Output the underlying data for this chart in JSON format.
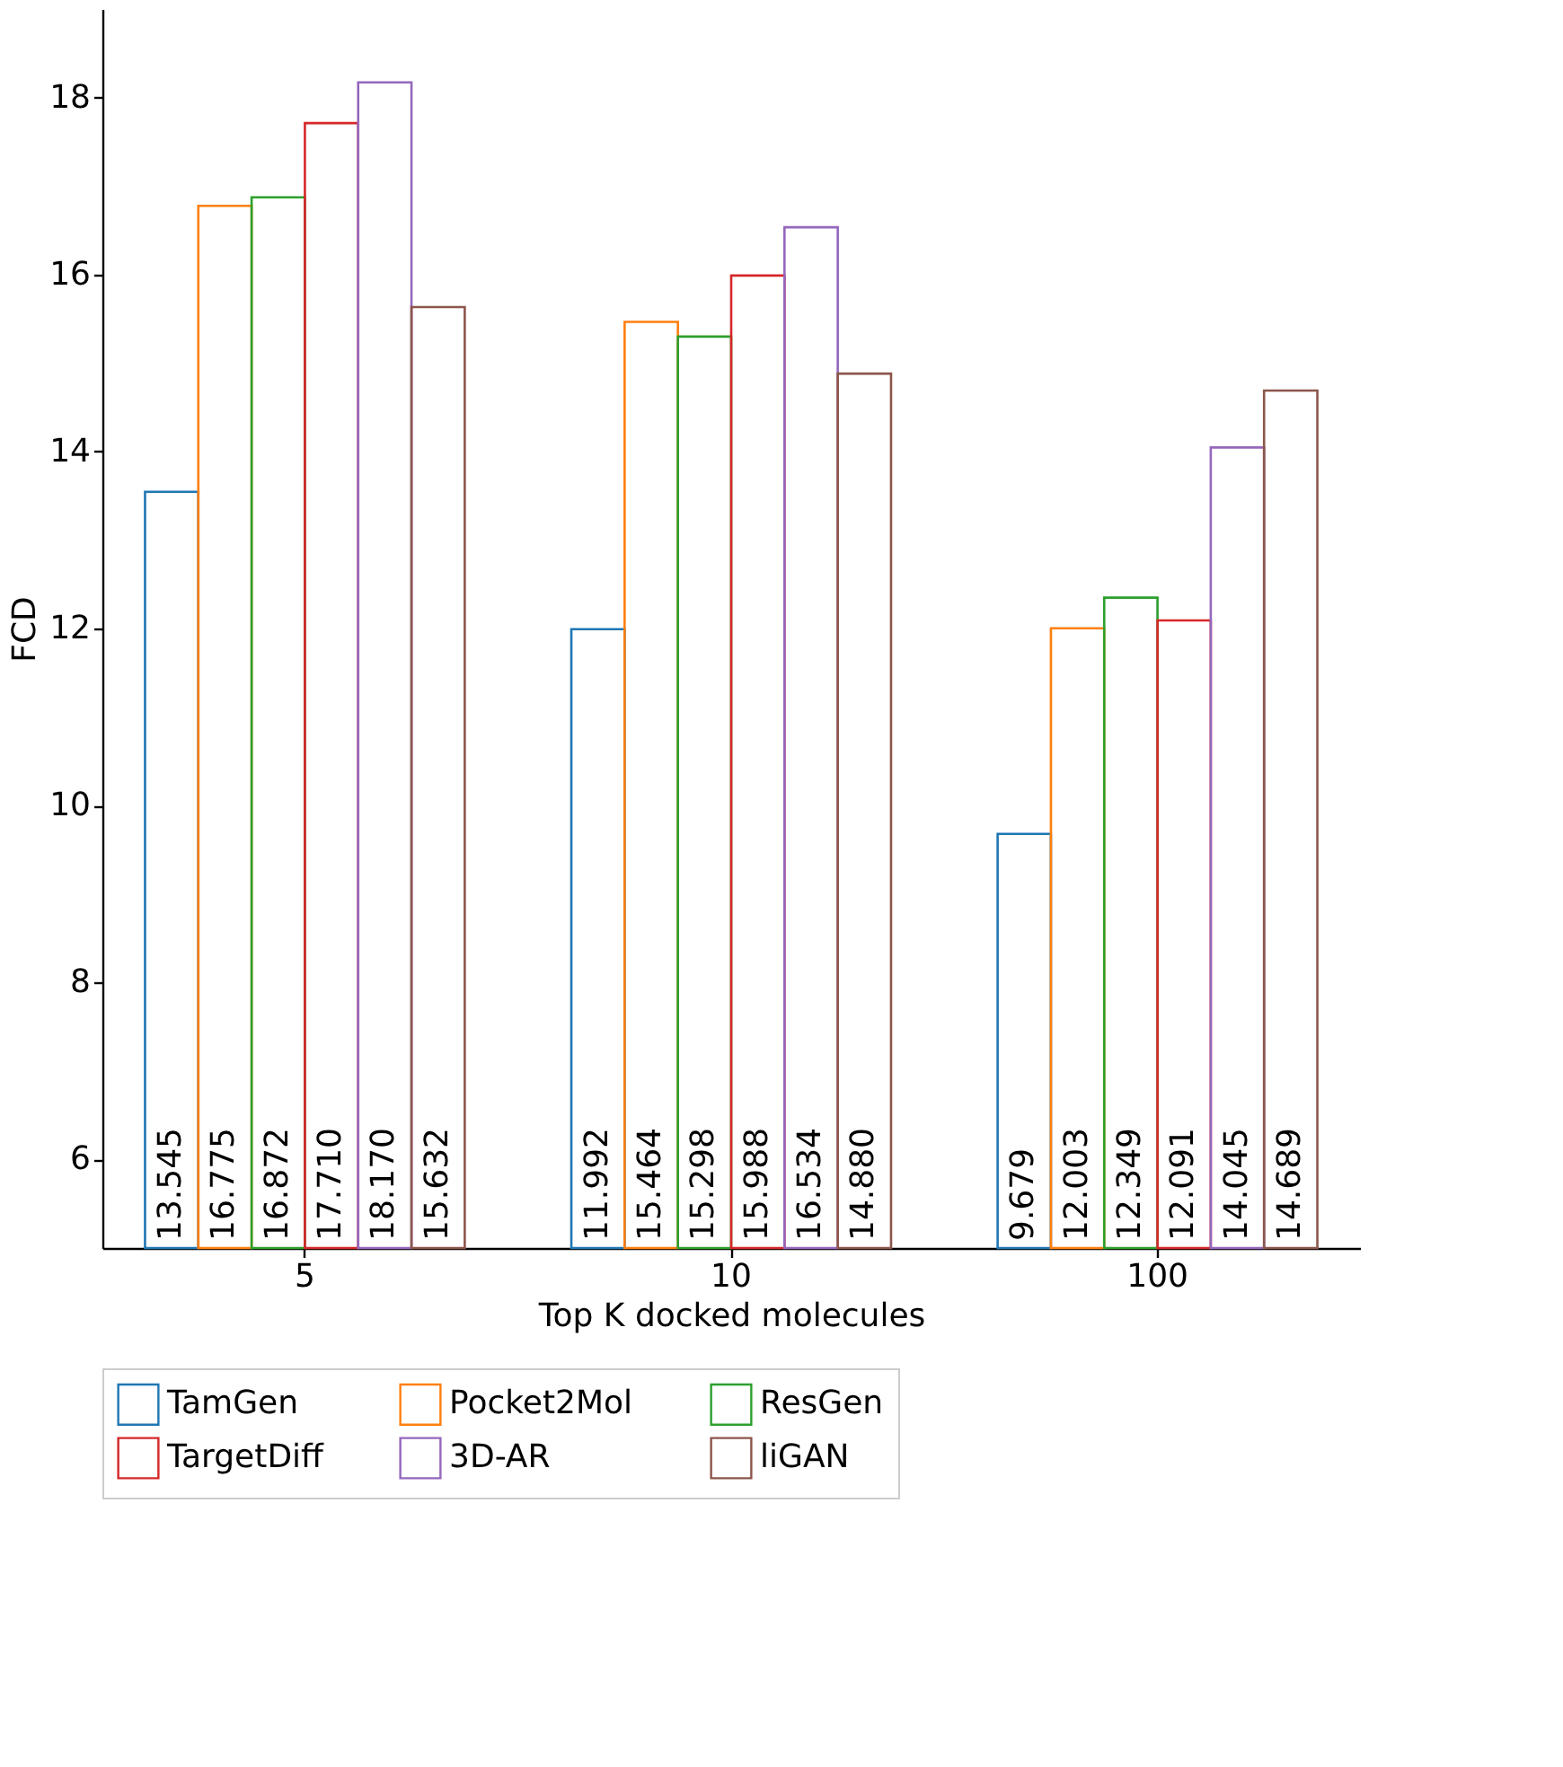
{
  "chart_data": {
    "type": "bar",
    "xlabel": "Top K docked molecules",
    "ylabel": "FCD",
    "categories": [
      "5",
      "10",
      "100"
    ],
    "ylim": [
      5,
      19
    ],
    "yticks": [
      6,
      8,
      10,
      12,
      14,
      16,
      18
    ],
    "grid": false,
    "legend": "bottom",
    "series": [
      {
        "name": "TamGen",
        "color": "#1f77b4",
        "values": [
          13.545,
          11.992,
          9.679
        ],
        "value_labels": [
          "13.545",
          "11.992",
          "9.679"
        ]
      },
      {
        "name": "Pocket2Mol",
        "color": "#ff7f0e",
        "values": [
          16.775,
          15.464,
          12.003
        ],
        "value_labels": [
          "16.775",
          "15.464",
          "12.003"
        ]
      },
      {
        "name": "ResGen",
        "color": "#2ca02c",
        "values": [
          16.872,
          15.298,
          12.349
        ],
        "value_labels": [
          "16.872",
          "15.298",
          "12.349"
        ]
      },
      {
        "name": "TargetDiff",
        "color": "#d62728",
        "values": [
          17.71,
          15.988,
          12.091
        ],
        "value_labels": [
          "17.710",
          "15.988",
          "12.091"
        ]
      },
      {
        "name": "3D-AR",
        "color": "#9467bd",
        "values": [
          18.17,
          16.534,
          14.045
        ],
        "value_labels": [
          "18.170",
          "16.534",
          "14.045"
        ]
      },
      {
        "name": "liGAN",
        "color": "#8c564b",
        "values": [
          15.632,
          14.88,
          14.689
        ],
        "value_labels": [
          "15.632",
          "14.880",
          "14.689"
        ]
      }
    ]
  }
}
